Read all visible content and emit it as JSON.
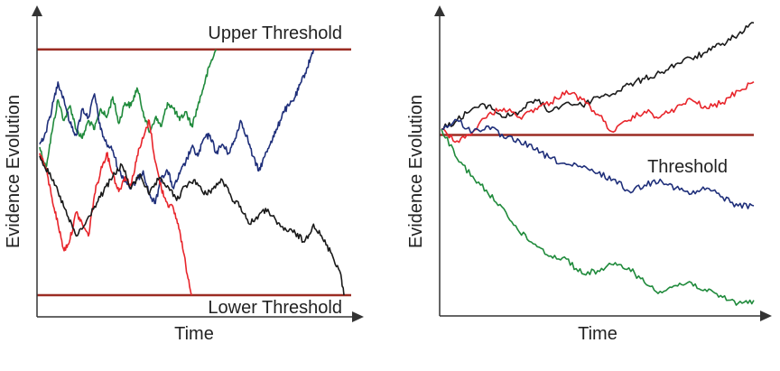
{
  "chart_data": [
    {
      "type": "line",
      "title": "",
      "xlabel": "Time",
      "ylabel": "Evidence Evolution",
      "xlim": [
        0,
        100
      ],
      "ylim": [
        0,
        100
      ],
      "grid": false,
      "thresholds": [
        {
          "label": "Upper Threshold",
          "value": 90,
          "color": "#9b2c23"
        },
        {
          "label": "Lower Threshold",
          "value": 7,
          "color": "#9b2c23"
        }
      ],
      "series": [
        {
          "color": "#1f8a3b",
          "x": [
            0,
            2,
            4,
            6,
            8,
            10,
            12,
            14,
            16,
            18,
            20,
            22,
            24,
            26,
            28,
            30,
            32,
            34,
            36,
            38,
            40,
            42,
            44,
            46,
            48,
            50,
            52,
            54,
            56,
            58
          ],
          "y": [
            57,
            50,
            62,
            73,
            66,
            71,
            63,
            60,
            66,
            63,
            70,
            67,
            74,
            65,
            72,
            71,
            77,
            69,
            62,
            67,
            64,
            72,
            70,
            66,
            69,
            64,
            71,
            78,
            85,
            90
          ]
        },
        {
          "color": "#1f2f7a",
          "x": [
            0,
            2,
            4,
            6,
            8,
            10,
            12,
            14,
            16,
            18,
            20,
            22,
            24,
            26,
            28,
            30,
            32,
            34,
            36,
            38,
            40,
            42,
            44,
            46,
            48,
            50,
            52,
            54,
            56,
            58,
            60,
            62,
            64,
            66,
            68,
            70,
            72,
            74,
            76,
            78,
            80,
            82,
            84,
            86,
            88,
            90
          ],
          "y": [
            58,
            62,
            70,
            79,
            73,
            65,
            61,
            70,
            67,
            75,
            63,
            58,
            56,
            49,
            46,
            43,
            46,
            49,
            41,
            38,
            47,
            49,
            43,
            48,
            52,
            57,
            54,
            60,
            61,
            55,
            58,
            55,
            59,
            66,
            61,
            54,
            49,
            54,
            59,
            63,
            69,
            71,
            74,
            79,
            84,
            90
          ]
        },
        {
          "color": "#e8252b",
          "x": [
            0,
            2,
            4,
            6,
            8,
            10,
            12,
            14,
            16,
            18,
            20,
            22,
            24,
            26,
            28,
            30,
            32,
            34,
            36,
            38,
            40,
            42,
            44,
            46,
            48,
            50
          ],
          "y": [
            55,
            50,
            40,
            31,
            22,
            26,
            35,
            31,
            27,
            41,
            49,
            55,
            48,
            42,
            47,
            44,
            54,
            60,
            66,
            52,
            43,
            38,
            36,
            29,
            17,
            7
          ]
        },
        {
          "color": "#1a1a1a",
          "x": [
            0,
            3,
            6,
            9,
            12,
            15,
            18,
            21,
            24,
            27,
            30,
            33,
            36,
            39,
            42,
            45,
            48,
            51,
            54,
            57,
            60,
            63,
            66,
            69,
            72,
            75,
            78,
            81,
            84,
            87,
            90,
            93,
            96,
            99,
            100
          ],
          "y": [
            54,
            48,
            42,
            34,
            27,
            31,
            37,
            42,
            47,
            51,
            43,
            48,
            41,
            46,
            44,
            39,
            44,
            46,
            41,
            43,
            46,
            40,
            37,
            31,
            34,
            36,
            31,
            29,
            28,
            25,
            31,
            26,
            21,
            14,
            7
          ]
        }
      ]
    },
    {
      "type": "line",
      "title": "",
      "xlabel": "Time",
      "ylabel": "Evidence Evolution",
      "xlim": [
        0,
        100
      ],
      "ylim": [
        0,
        100
      ],
      "grid": false,
      "thresholds": [
        {
          "label": "Threshold",
          "value": 61,
          "color": "#9b2c23"
        }
      ],
      "series": [
        {
          "color": "#1a1a1a",
          "x": [
            0,
            5,
            10,
            15,
            20,
            25,
            30,
            35,
            40,
            45,
            50,
            55,
            60,
            65,
            70,
            75,
            80,
            85,
            90,
            95,
            100
          ],
          "y": [
            63,
            66,
            70,
            71,
            67,
            69,
            73,
            69,
            72,
            71,
            74,
            75,
            78,
            80,
            82,
            85,
            87,
            89,
            92,
            95,
            99
          ]
        },
        {
          "color": "#e8252b",
          "x": [
            0,
            5,
            10,
            15,
            20,
            25,
            30,
            35,
            40,
            45,
            50,
            55,
            60,
            65,
            70,
            75,
            80,
            85,
            90,
            95,
            100
          ],
          "y": [
            63,
            59,
            62,
            68,
            70,
            67,
            70,
            72,
            76,
            73,
            68,
            62,
            66,
            69,
            67,
            70,
            73,
            70,
            72,
            76,
            79
          ]
        },
        {
          "color": "#1f2f7a",
          "x": [
            0,
            5,
            10,
            15,
            20,
            25,
            30,
            35,
            40,
            45,
            50,
            55,
            60,
            65,
            70,
            75,
            80,
            85,
            90,
            95,
            100
          ],
          "y": [
            63,
            66,
            62,
            64,
            60,
            59,
            56,
            53,
            51,
            50,
            48,
            46,
            42,
            44,
            46,
            43,
            41,
            43,
            40,
            37,
            37
          ]
        },
        {
          "color": "#1f8a3b",
          "x": [
            0,
            5,
            10,
            15,
            20,
            25,
            30,
            35,
            40,
            45,
            50,
            55,
            60,
            65,
            70,
            75,
            80,
            85,
            90,
            95,
            100
          ],
          "y": [
            63,
            53,
            47,
            41,
            36,
            28,
            24,
            20,
            19,
            14,
            15,
            17,
            16,
            11,
            8,
            10,
            11,
            8,
            6,
            4,
            5
          ]
        }
      ]
    }
  ]
}
